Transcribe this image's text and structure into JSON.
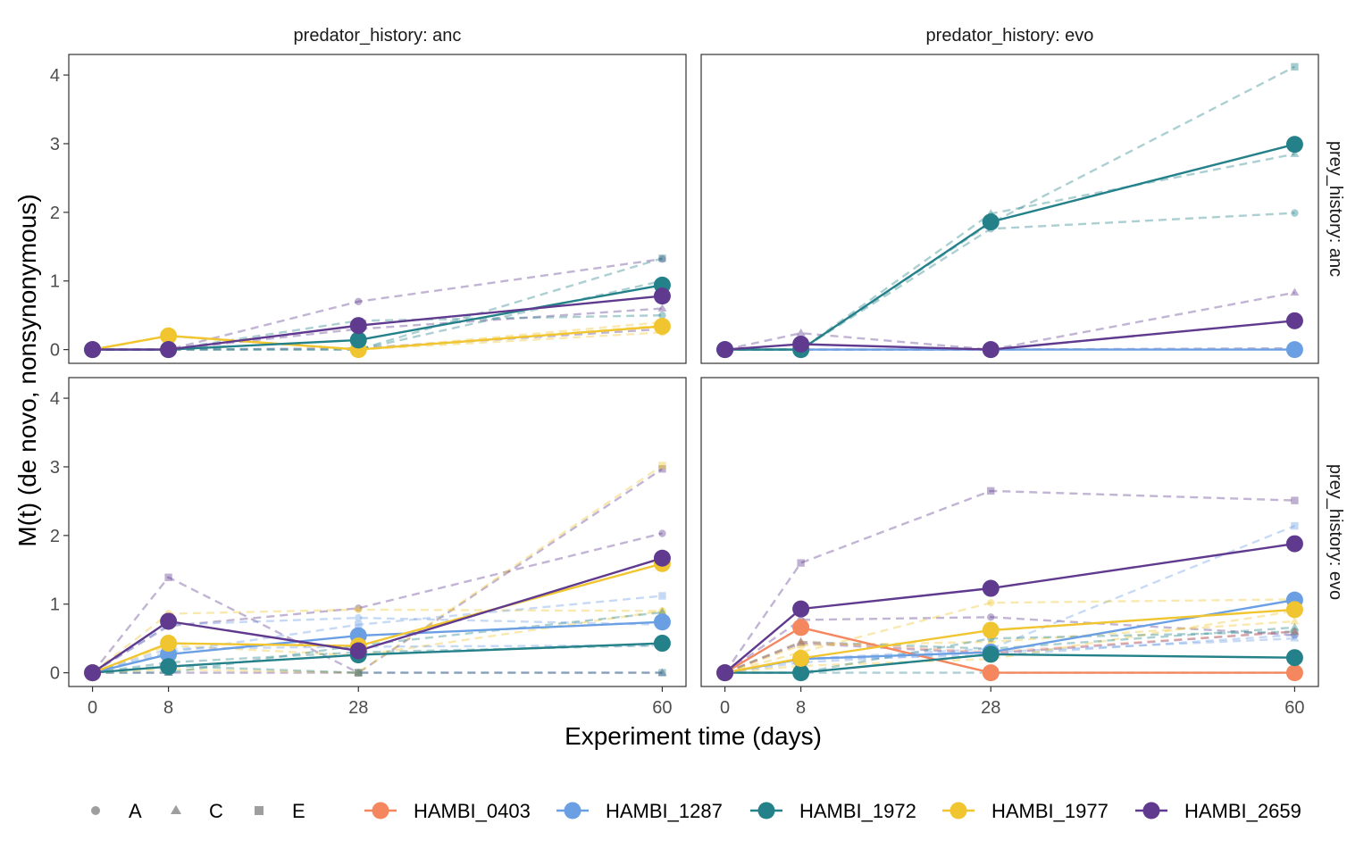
{
  "chart_data": {
    "type": "line",
    "xlabel": "Experiment time (days)",
    "ylabel": "M(t) (de novo, nonsynonymous)",
    "x_ticks": [
      0,
      8,
      28,
      60
    ],
    "xlim": [
      -2.5,
      62.5
    ],
    "y_ticks": [
      0,
      1,
      2,
      3,
      4
    ],
    "ylim": [
      -0.2,
      4.3
    ],
    "grid": false,
    "legend_position": "bottom",
    "column_strip_labels": [
      "predator_history: anc",
      "predator_history: evo"
    ],
    "row_strip_labels": [
      "prey_history: anc",
      "prey_history: evo"
    ],
    "colors": {
      "HAMBI_0403": "#F4875E",
      "HAMBI_1287": "#6B9FE4",
      "HAMBI_1972": "#24818A",
      "HAMBI_1977": "#F0C52F",
      "HAMBI_2659": "#5F3A8E"
    },
    "shape_legend": [
      {
        "label": "A",
        "shape": "circle"
      },
      {
        "label": "C",
        "shape": "triangle"
      },
      {
        "label": "E",
        "shape": "square"
      }
    ],
    "color_legend": [
      "HAMBI_0403",
      "HAMBI_1287",
      "HAMBI_1972",
      "HAMBI_1977",
      "HAMBI_2659"
    ],
    "panels": [
      {
        "row": 0,
        "col": 0,
        "mean_series": [
          {
            "name": "HAMBI_1977",
            "x": [
              0,
              8,
              28,
              60
            ],
            "y": [
              0,
              0.2,
              0.0,
              0.34
            ]
          },
          {
            "name": "HAMBI_1972",
            "x": [
              0,
              8,
              28,
              60
            ],
            "y": [
              0,
              0,
              0.14,
              0.94
            ]
          },
          {
            "name": "HAMBI_2659",
            "x": [
              0,
              8,
              28,
              60
            ],
            "y": [
              0,
              0,
              0.35,
              0.78
            ]
          }
        ],
        "replicate_series": [
          {
            "name": "HAMBI_2659",
            "replicate": "A",
            "x": [
              0,
              8,
              28,
              60
            ],
            "y": [
              0,
              0,
              0.7,
              1.32
            ]
          },
          {
            "name": "HAMBI_2659",
            "replicate": "C",
            "x": [
              0,
              8,
              28,
              60
            ],
            "y": [
              0,
              0,
              0.3,
              0.6
            ]
          },
          {
            "name": "HAMBI_2659",
            "replicate": "E",
            "x": [
              0,
              8,
              28,
              60
            ],
            "y": [
              0,
              0,
              0.02,
              0.3
            ]
          },
          {
            "name": "HAMBI_1972",
            "replicate": "A",
            "x": [
              0,
              8,
              28,
              60
            ],
            "y": [
              0,
              0,
              0.42,
              0.5
            ]
          },
          {
            "name": "HAMBI_1972",
            "replicate": "C",
            "x": [
              0,
              8,
              28,
              60
            ],
            "y": [
              0,
              0,
              0,
              1.0
            ]
          },
          {
            "name": "HAMBI_1972",
            "replicate": "E",
            "x": [
              0,
              8,
              28,
              60
            ],
            "y": [
              0,
              0,
              0,
              1.33
            ]
          },
          {
            "name": "HAMBI_1977",
            "replicate": "A",
            "x": [
              0,
              8,
              28,
              60
            ],
            "y": [
              0,
              0.2,
              0,
              0.25
            ]
          },
          {
            "name": "HAMBI_1977",
            "replicate": "C",
            "x": [
              0,
              8,
              28,
              60
            ],
            "y": [
              0,
              0.2,
              0,
              0.4
            ]
          },
          {
            "name": "HAMBI_1977",
            "replicate": "E",
            "x": [
              0,
              8,
              28,
              60
            ],
            "y": [
              0,
              0.2,
              0,
              0.35
            ]
          }
        ]
      },
      {
        "row": 0,
        "col": 1,
        "mean_series": [
          {
            "name": "HAMBI_1287",
            "x": [
              0,
              8,
              28,
              60
            ],
            "y": [
              0,
              0,
              0,
              0
            ]
          },
          {
            "name": "HAMBI_1972",
            "x": [
              0,
              8,
              28,
              60
            ],
            "y": [
              0,
              0,
              1.86,
              2.99
            ]
          },
          {
            "name": "HAMBI_2659",
            "x": [
              0,
              8,
              28,
              60
            ],
            "y": [
              0,
              0.08,
              0,
              0.42
            ]
          }
        ],
        "replicate_series": [
          {
            "name": "HAMBI_1972",
            "replicate": "A",
            "x": [
              0,
              8,
              28,
              60
            ],
            "y": [
              0,
              0,
              1.76,
              1.99
            ]
          },
          {
            "name": "HAMBI_1972",
            "replicate": "C",
            "x": [
              0,
              8,
              28,
              60
            ],
            "y": [
              0,
              0,
              1.98,
              2.85
            ]
          },
          {
            "name": "HAMBI_1972",
            "replicate": "E",
            "x": [
              0,
              8,
              28,
              60
            ],
            "y": [
              0,
              0,
              1.84,
              4.12
            ]
          },
          {
            "name": "HAMBI_2659",
            "replicate": "A",
            "x": [
              0,
              8,
              28,
              60
            ],
            "y": [
              0,
              0,
              0,
              0.42
            ]
          },
          {
            "name": "HAMBI_2659",
            "replicate": "C",
            "x": [
              0,
              8,
              28,
              60
            ],
            "y": [
              0,
              0.24,
              0,
              0.83
            ]
          },
          {
            "name": "HAMBI_2659",
            "replicate": "E",
            "x": [
              0,
              8,
              28,
              60
            ],
            "y": [
              0,
              0,
              0,
              0.02
            ]
          }
        ]
      },
      {
        "row": 1,
        "col": 0,
        "mean_series": [
          {
            "name": "HAMBI_1287",
            "x": [
              0,
              8,
              28,
              60
            ],
            "y": [
              0,
              0.27,
              0.54,
              0.74
            ]
          },
          {
            "name": "HAMBI_1972",
            "x": [
              0,
              8,
              28,
              60
            ],
            "y": [
              0,
              0.09,
              0.26,
              0.43
            ]
          },
          {
            "name": "HAMBI_1977",
            "x": [
              0,
              8,
              28,
              60
            ],
            "y": [
              0,
              0.43,
              0.39,
              1.59
            ]
          },
          {
            "name": "HAMBI_2659",
            "x": [
              0,
              8,
              28,
              60
            ],
            "y": [
              0,
              0.75,
              0.32,
              1.67
            ]
          }
        ],
        "replicate_series": [
          {
            "name": "HAMBI_2659",
            "replicate": "A",
            "x": [
              0,
              8,
              28,
              60
            ],
            "y": [
              0,
              0.68,
              0.94,
              2.03
            ]
          },
          {
            "name": "HAMBI_2659",
            "replicate": "C",
            "x": [
              0,
              8,
              28,
              60
            ],
            "y": [
              0,
              0,
              0,
              0
            ]
          },
          {
            "name": "HAMBI_2659",
            "replicate": "E",
            "x": [
              0,
              8,
              28,
              60
            ],
            "y": [
              0,
              1.39,
              0,
              2.97
            ]
          },
          {
            "name": "HAMBI_1977",
            "replicate": "A",
            "x": [
              0,
              8,
              28,
              60
            ],
            "y": [
              0,
              0.86,
              0.92,
              0.9
            ]
          },
          {
            "name": "HAMBI_1977",
            "replicate": "C",
            "x": [
              0,
              8,
              28,
              60
            ],
            "y": [
              0,
              0.4,
              0.25,
              0.9
            ]
          },
          {
            "name": "HAMBI_1977",
            "replicate": "E",
            "x": [
              0,
              8,
              28,
              60
            ],
            "y": [
              0,
              0.05,
              0,
              3.02
            ]
          },
          {
            "name": "HAMBI_1287",
            "replicate": "A",
            "x": [
              0,
              8,
              28,
              60
            ],
            "y": [
              0,
              0.7,
              0.8,
              0.7
            ]
          },
          {
            "name": "HAMBI_1287",
            "replicate": "C",
            "x": [
              0,
              8,
              28,
              60
            ],
            "y": [
              0,
              0.35,
              0.38,
              0.4
            ]
          },
          {
            "name": "HAMBI_1287",
            "replicate": "E",
            "x": [
              0,
              8,
              28,
              60
            ],
            "y": [
              0,
              0.3,
              0.7,
              1.12
            ]
          },
          {
            "name": "HAMBI_1972",
            "replicate": "A",
            "x": [
              0,
              8,
              28,
              60
            ],
            "y": [
              0,
              0.15,
              0.3,
              0.4
            ]
          },
          {
            "name": "HAMBI_1972",
            "replicate": "C",
            "x": [
              0,
              8,
              28,
              60
            ],
            "y": [
              0,
              0,
              0.4,
              0.88
            ]
          },
          {
            "name": "HAMBI_1972",
            "replicate": "E",
            "x": [
              0,
              8,
              28,
              60
            ],
            "y": [
              0,
              0.1,
              0,
              0
            ]
          }
        ]
      },
      {
        "row": 1,
        "col": 1,
        "mean_series": [
          {
            "name": "HAMBI_0403",
            "x": [
              0,
              8,
              28,
              60
            ],
            "y": [
              0,
              0.66,
              0,
              0
            ]
          },
          {
            "name": "HAMBI_1287",
            "x": [
              0,
              8,
              28,
              60
            ],
            "y": [
              0,
              0.2,
              0.3,
              1.06
            ]
          },
          {
            "name": "HAMBI_1972",
            "x": [
              0,
              8,
              28,
              60
            ],
            "y": [
              0,
              0,
              0.27,
              0.22
            ]
          },
          {
            "name": "HAMBI_1977",
            "x": [
              0,
              8,
              28,
              60
            ],
            "y": [
              0,
              0.21,
              0.62,
              0.92
            ]
          },
          {
            "name": "HAMBI_2659",
            "x": [
              0,
              8,
              28,
              60
            ],
            "y": [
              0,
              0.93,
              1.23,
              1.88
            ]
          }
        ],
        "replicate_series": [
          {
            "name": "HAMBI_2659",
            "replicate": "A",
            "x": [
              0,
              8,
              28,
              60
            ],
            "y": [
              0,
              0.77,
              0.81,
              0.55
            ]
          },
          {
            "name": "HAMBI_2659",
            "replicate": "C",
            "x": [
              0,
              8,
              28,
              60
            ],
            "y": [
              0,
              0.43,
              0.28,
              0.6
            ]
          },
          {
            "name": "HAMBI_2659",
            "replicate": "E",
            "x": [
              0,
              8,
              28,
              60
            ],
            "y": [
              0,
              1.6,
              2.65,
              2.51
            ]
          },
          {
            "name": "HAMBI_1287",
            "replicate": "A",
            "x": [
              0,
              8,
              28,
              60
            ],
            "y": [
              0,
              0.2,
              0.25,
              0.55
            ]
          },
          {
            "name": "HAMBI_1287",
            "replicate": "C",
            "x": [
              0,
              8,
              28,
              60
            ],
            "y": [
              0,
              0.15,
              0.3,
              0.5
            ]
          },
          {
            "name": "HAMBI_1287",
            "replicate": "E",
            "x": [
              0,
              8,
              28,
              60
            ],
            "y": [
              0,
              0.2,
              0.35,
              2.14
            ]
          },
          {
            "name": "HAMBI_1977",
            "replicate": "A",
            "x": [
              0,
              8,
              28,
              60
            ],
            "y": [
              0,
              0.3,
              1.02,
              1.07
            ]
          },
          {
            "name": "HAMBI_1977",
            "replicate": "C",
            "x": [
              0,
              8,
              28,
              60
            ],
            "y": [
              0,
              0.4,
              0.45,
              0.75
            ]
          },
          {
            "name": "HAMBI_1977",
            "replicate": "E",
            "x": [
              0,
              8,
              28,
              60
            ],
            "y": [
              0,
              0.1,
              0.2,
              0.9
            ]
          },
          {
            "name": "HAMBI_1972",
            "replicate": "A",
            "x": [
              0,
              8,
              28,
              60
            ],
            "y": [
              0,
              0,
              0.5,
              0.6
            ]
          },
          {
            "name": "HAMBI_1972",
            "replicate": "C",
            "x": [
              0,
              8,
              28,
              60
            ],
            "y": [
              0,
              0.45,
              0.35,
              0.66
            ]
          },
          {
            "name": "HAMBI_1972",
            "replicate": "E",
            "x": [
              0,
              8,
              28,
              60
            ],
            "y": [
              0,
              0,
              0,
              0
            ]
          },
          {
            "name": "HAMBI_0403",
            "replicate": "C",
            "x": [
              0,
              8,
              28,
              60
            ],
            "y": [
              0,
              0.45,
              0.3,
              0.6
            ]
          }
        ]
      }
    ]
  }
}
